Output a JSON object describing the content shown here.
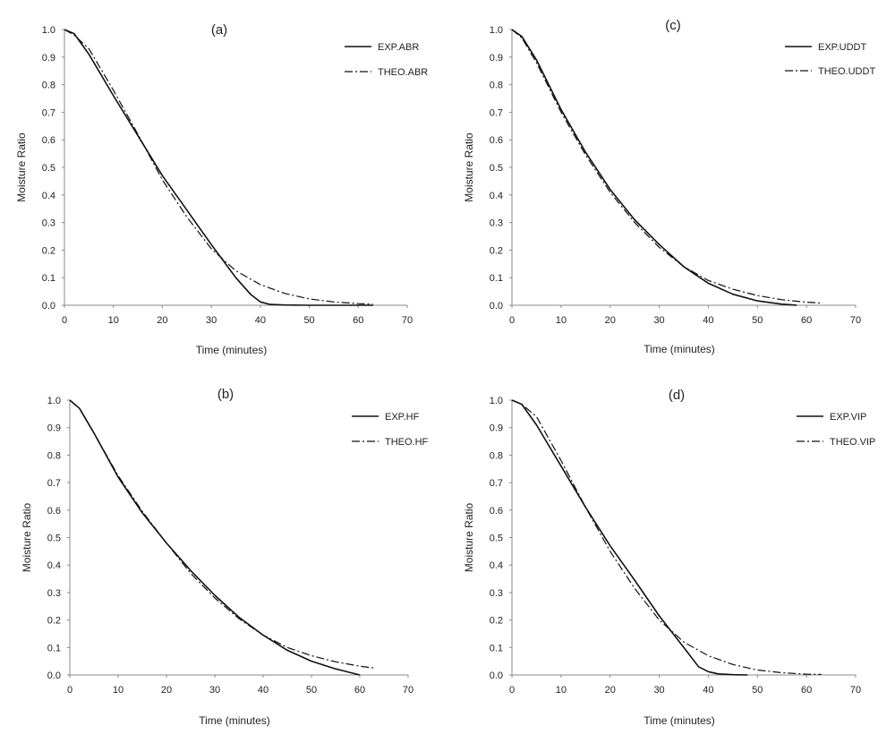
{
  "chart_data": [
    {
      "type": "line",
      "title": "(a)",
      "xlabel": "Time (minutes)",
      "ylabel": "Moisture Ratio",
      "xlim": [
        0,
        70
      ],
      "ylim": [
        0,
        1.0
      ],
      "x_ticks": [
        "0",
        "10",
        "20",
        "30",
        "40",
        "50",
        "60",
        "70"
      ],
      "y_ticks": [
        "0.0",
        "0.1",
        "0.2",
        "0.3",
        "0.4",
        "0.5",
        "0.6",
        "0.7",
        "0.8",
        "0.9",
        "1.0"
      ],
      "legend_position": "top-right",
      "grid": false,
      "series": [
        {
          "name": "EXP.ABR",
          "style": "solid",
          "x": [
            0,
            2,
            5,
            10,
            15,
            20,
            25,
            30,
            35,
            38,
            40,
            42,
            45,
            50,
            55,
            60,
            63
          ],
          "y": [
            1.0,
            0.985,
            0.91,
            0.76,
            0.615,
            0.47,
            0.345,
            0.22,
            0.1,
            0.04,
            0.012,
            0.003,
            0.001,
            0.0,
            0.0,
            0.0,
            0.0
          ]
        },
        {
          "name": "THEO.ABR",
          "style": "dashdot",
          "x": [
            0,
            2,
            5,
            10,
            15,
            20,
            25,
            30,
            35,
            40,
            45,
            50,
            55,
            60,
            63
          ],
          "y": [
            1.0,
            0.98,
            0.93,
            0.78,
            0.62,
            0.455,
            0.32,
            0.205,
            0.125,
            0.075,
            0.043,
            0.023,
            0.012,
            0.006,
            0.004
          ]
        }
      ]
    },
    {
      "type": "line",
      "title": "(c)",
      "xlabel": "Time (minutes)",
      "ylabel": "Moisture Ratio",
      "xlim": [
        0,
        70
      ],
      "ylim": [
        0,
        1.0
      ],
      "x_ticks": [
        "0",
        "10",
        "20",
        "30",
        "40",
        "50",
        "60",
        "70"
      ],
      "y_ticks": [
        "0.0",
        "0.1",
        "0.2",
        "0.3",
        "0.4",
        "0.5",
        "0.6",
        "0.7",
        "0.8",
        "0.9",
        "1.0"
      ],
      "legend_position": "top-right",
      "grid": false,
      "series": [
        {
          "name": "EXP.UDDT",
          "style": "solid",
          "x": [
            0,
            2,
            5,
            10,
            15,
            20,
            25,
            30,
            35,
            40,
            45,
            50,
            55,
            58
          ],
          "y": [
            1.0,
            0.975,
            0.89,
            0.71,
            0.555,
            0.42,
            0.31,
            0.22,
            0.14,
            0.08,
            0.04,
            0.016,
            0.004,
            0.0
          ]
        },
        {
          "name": "THEO.UDDT",
          "style": "dashdot",
          "x": [
            0,
            2,
            5,
            10,
            15,
            20,
            25,
            30,
            35,
            40,
            45,
            50,
            55,
            60,
            63
          ],
          "y": [
            1.0,
            0.97,
            0.88,
            0.7,
            0.545,
            0.41,
            0.3,
            0.21,
            0.14,
            0.09,
            0.058,
            0.035,
            0.02,
            0.011,
            0.008
          ]
        }
      ]
    },
    {
      "type": "line",
      "title": "(b)",
      "xlabel": "Time (minutes)",
      "ylabel": "Moisture Ratio",
      "xlim": [
        0,
        70
      ],
      "ylim": [
        0,
        1.0
      ],
      "x_ticks": [
        "0",
        "10",
        "20",
        "30",
        "40",
        "50",
        "60",
        "70"
      ],
      "y_ticks": [
        "0.0",
        "0.1",
        "0.2",
        "0.3",
        "0.4",
        "0.5",
        "0.6",
        "0.7",
        "0.8",
        "0.9",
        "1.0"
      ],
      "legend_position": "top-right",
      "grid": false,
      "series": [
        {
          "name": "EXP.HF",
          "style": "solid",
          "x": [
            0,
            2,
            5,
            10,
            15,
            20,
            25,
            30,
            35,
            40,
            45,
            50,
            55,
            60
          ],
          "y": [
            1.0,
            0.97,
            0.88,
            0.72,
            0.59,
            0.48,
            0.38,
            0.29,
            0.21,
            0.145,
            0.09,
            0.05,
            0.022,
            0.0
          ]
        },
        {
          "name": "THEO.HF",
          "style": "dashdot",
          "x": [
            0,
            2,
            5,
            10,
            15,
            20,
            25,
            30,
            35,
            40,
            45,
            50,
            55,
            60,
            63
          ],
          "y": [
            1.0,
            0.97,
            0.88,
            0.725,
            0.595,
            0.48,
            0.37,
            0.28,
            0.205,
            0.145,
            0.1,
            0.07,
            0.048,
            0.032,
            0.025
          ]
        }
      ]
    },
    {
      "type": "line",
      "title": "(d)",
      "xlabel": "Time (minutes)",
      "ylabel": "Moisture Ratio",
      "xlim": [
        0,
        70
      ],
      "ylim": [
        0,
        1.0
      ],
      "x_ticks": [
        "0",
        "10",
        "20",
        "30",
        "40",
        "50",
        "60",
        "70"
      ],
      "y_ticks": [
        "0.0",
        "0.1",
        "0.2",
        "0.3",
        "0.4",
        "0.5",
        "0.6",
        "0.7",
        "0.8",
        "0.9",
        "1.0"
      ],
      "legend_position": "top-right",
      "grid": false,
      "series": [
        {
          "name": "EXP.VIP",
          "style": "solid",
          "x": [
            0,
            2,
            5,
            10,
            15,
            20,
            25,
            30,
            35,
            38,
            40,
            42,
            45,
            48
          ],
          "y": [
            1.0,
            0.985,
            0.91,
            0.76,
            0.61,
            0.47,
            0.345,
            0.215,
            0.1,
            0.03,
            0.012,
            0.004,
            0.001,
            0.0
          ]
        },
        {
          "name": "THEO.VIP",
          "style": "dashdot",
          "x": [
            0,
            2,
            5,
            10,
            15,
            20,
            25,
            30,
            35,
            40,
            45,
            50,
            55,
            60,
            63
          ],
          "y": [
            1.0,
            0.985,
            0.94,
            0.78,
            0.61,
            0.45,
            0.315,
            0.2,
            0.12,
            0.07,
            0.038,
            0.018,
            0.008,
            0.003,
            0.002
          ]
        }
      ]
    }
  ]
}
